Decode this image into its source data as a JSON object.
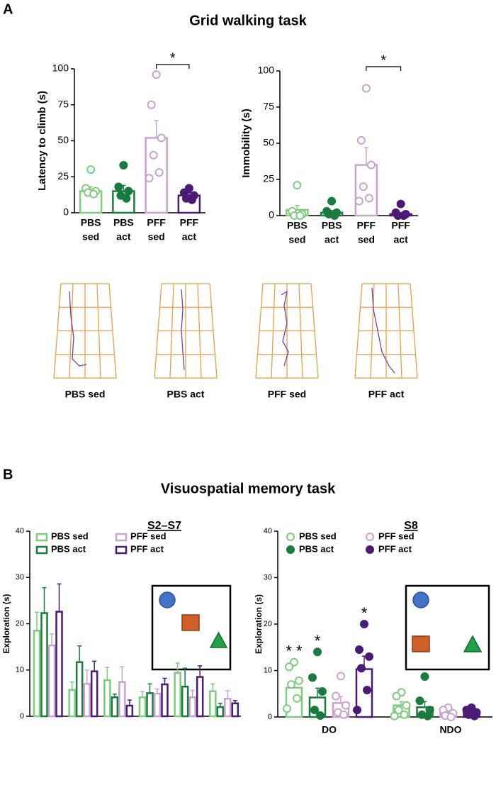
{
  "panels": [
    {
      "label": "A",
      "title": "Grid walking task"
    },
    {
      "label": "B",
      "title": "Visuospatial memory task"
    }
  ],
  "grid_traces": {
    "labels": [
      "PBS sed",
      "PBS act",
      "PFF sed",
      "PFF act"
    ]
  },
  "chart_data": [
    {
      "type": "bar-dots",
      "ylabel": "Latency to climb (s)",
      "categories": [
        [
          "PBS",
          "sed"
        ],
        [
          "PBS",
          "act"
        ],
        [
          "PFF",
          "sed"
        ],
        [
          "PFF",
          "act"
        ]
      ],
      "values": [
        15,
        15,
        52,
        12
      ],
      "errors": [
        3,
        4,
        12,
        2
      ],
      "points": [
        [
          30,
          17,
          15,
          14,
          13
        ],
        [
          33,
          18,
          15,
          12,
          10
        ],
        [
          96,
          75,
          52,
          40,
          28,
          24
        ],
        [
          17,
          14,
          12,
          10,
          9
        ]
      ],
      "colors": [
        "#7fcb7f",
        "#1b7a3e",
        "#c9a3cc",
        "#4a1a74"
      ],
      "open": [
        true,
        false,
        true,
        false
      ],
      "ylim": [
        0,
        100
      ],
      "yticks": [
        0,
        25,
        50,
        75,
        100
      ],
      "annotations": [
        {
          "text": "*",
          "from": 2,
          "to": 3,
          "color": "#4a1a74"
        }
      ]
    },
    {
      "type": "bar-dots",
      "ylabel": "Immobility (s)",
      "categories": [
        [
          "PBS",
          "sed"
        ],
        [
          "PBS",
          "act"
        ],
        [
          "PFF",
          "sed"
        ],
        [
          "PFF",
          "act"
        ]
      ],
      "values": [
        4,
        2,
        35,
        1
      ],
      "errors": [
        3,
        1.5,
        12,
        1
      ],
      "points": [
        [
          21,
          3,
          1,
          0,
          0
        ],
        [
          10,
          3,
          2,
          1,
          0
        ],
        [
          88,
          52,
          35,
          20,
          12,
          10
        ],
        [
          8,
          2,
          1,
          0,
          0
        ]
      ],
      "colors": [
        "#7fcb7f",
        "#1b7a3e",
        "#c9a3cc",
        "#4a1a74"
      ],
      "open": [
        true,
        false,
        true,
        false
      ],
      "ylim": [
        0,
        100
      ],
      "yticks": [
        0,
        25,
        50,
        75,
        100
      ],
      "annotations": [
        {
          "text": "*",
          "from": 2,
          "to": 3,
          "color": "#4a1a74"
        }
      ]
    },
    {
      "type": "grouped-bar",
      "title": "S2–S7",
      "ylabel": "Exploration (s)",
      "categories": [
        null,
        null,
        null,
        null,
        null,
        null
      ],
      "series": [
        {
          "name": "PBS sed",
          "color": "#7fcb7f",
          "open": true,
          "values": [
            18.5,
            5.7,
            7.8,
            4.1,
            9.4,
            5.4
          ],
          "errors": [
            4,
            1.7,
            2.8,
            1.2,
            2.1,
            1.6
          ]
        },
        {
          "name": "PBS act",
          "color": "#1b7a3e",
          "open": false,
          "values": [
            22.3,
            11.7,
            4.1,
            5.0,
            6.4,
            2.0
          ],
          "errors": [
            5.5,
            3.5,
            0.7,
            2,
            4,
            0.8
          ]
        },
        {
          "name": "PFF sed",
          "color": "#c9a3cc",
          "open": true,
          "values": [
            15.3,
            7.0,
            7.4,
            4.9,
            4.1,
            3.8
          ],
          "errors": [
            2.5,
            3,
            3.3,
            1,
            1.5,
            1.7
          ]
        },
        {
          "name": "PFF act",
          "color": "#4a1a74",
          "open": false,
          "values": [
            22.6,
            9.7,
            2.3,
            6.9,
            8.5,
            2.8
          ],
          "errors": [
            6,
            2.2,
            1.2,
            1.3,
            2.4,
            0.6
          ]
        }
      ],
      "ylim": [
        0,
        40
      ],
      "yticks": [
        0,
        10,
        20,
        30,
        40
      ]
    },
    {
      "type": "grouped-bar-dots",
      "title": "S8",
      "ylabel": "Exploration (s)",
      "categories": [
        "DO",
        "NDO"
      ],
      "series": [
        {
          "name": "PBS sed",
          "color": "#7fcb7f",
          "open": true,
          "values": [
            6.3,
            2.5
          ],
          "errors": [
            1.3,
            0.8
          ],
          "points": [
            [
              11.8,
              10.8,
              7.8,
              7,
              4,
              1.8
            ],
            [
              5.3,
              4.5,
              2.5,
              1.5,
              0.5,
              0.2
            ]
          ]
        },
        {
          "name": "PBS act",
          "color": "#1b7a3e",
          "open": false,
          "values": [
            4.2,
            2.1
          ],
          "errors": [
            2,
            1.2
          ],
          "points": [
            [
              14,
              8.5,
              5.5,
              1.5,
              0.3
            ],
            [
              8.7,
              3.5,
              1.5,
              0.5,
              0.2
            ]
          ]
        },
        {
          "name": "PFF sed",
          "color": "#c9a3cc",
          "open": true,
          "values": [
            3.0,
            0.9
          ],
          "errors": [
            1.4,
            0.4
          ],
          "points": [
            [
              8.8,
              4.5,
              2.5,
              1,
              0.5
            ],
            [
              2,
              1.5,
              0.8,
              0.3,
              0
            ]
          ]
        },
        {
          "name": "PFF act",
          "color": "#4a1a74",
          "open": false,
          "values": [
            10.3,
            1.2
          ],
          "errors": [
            2.8,
            0.5
          ],
          "points": [
            [
              20,
              14.5,
              13,
              10.5,
              5.8,
              1.5
            ],
            [
              2,
              1.5,
              1,
              0.5,
              0.2
            ]
          ]
        }
      ],
      "ylim": [
        0,
        40
      ],
      "yticks": [
        0,
        10,
        20,
        30,
        40
      ],
      "annotations": [
        {
          "text": "* *",
          "category": 0,
          "series": 0
        },
        {
          "text": "*",
          "category": 0,
          "series": 1
        },
        {
          "text": "*",
          "category": 0,
          "series": 3
        }
      ]
    }
  ]
}
